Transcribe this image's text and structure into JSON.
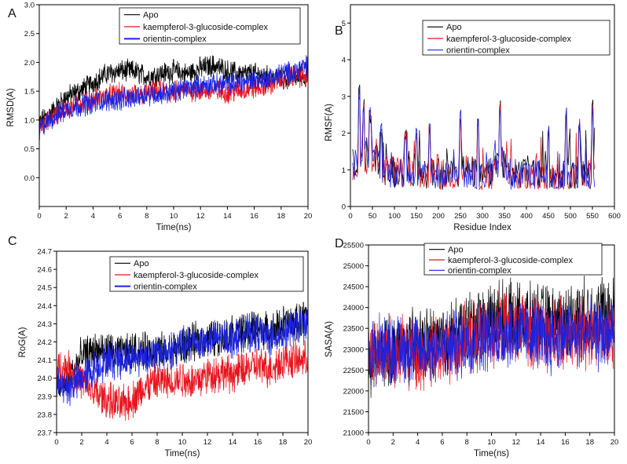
{
  "chart_data": [
    {
      "panel": "A",
      "type": "line",
      "xlabel": "Time(ns)",
      "ylabel": "RMSD(A)",
      "xlim": [
        0,
        20
      ],
      "ylim": [
        -0.5,
        3.0
      ],
      "xticks": [
        0,
        2,
        4,
        6,
        8,
        10,
        12,
        14,
        16,
        18,
        20
      ],
      "yticks": [
        "0.0",
        "0.5",
        "1.0",
        "1.5",
        "2.0",
        "2.5",
        "3.0"
      ],
      "legend": [
        "Apo",
        "kaempferol-3-glucoside-complex",
        "orientin-complex"
      ],
      "series": [
        {
          "name": "Apo",
          "color": "#000000",
          "x": [
            0,
            1,
            2,
            3,
            4,
            5,
            6,
            7,
            8,
            9,
            10,
            11,
            12,
            13,
            14,
            15,
            16,
            17,
            18,
            19,
            20
          ],
          "values": [
            0.95,
            1.15,
            1.4,
            1.5,
            1.65,
            1.8,
            1.85,
            1.85,
            1.75,
            1.8,
            1.85,
            1.8,
            1.9,
            1.95,
            1.85,
            1.8,
            1.8,
            1.75,
            1.7,
            1.75,
            1.78
          ]
        },
        {
          "name": "kaempferol-3-glucoside-complex",
          "color": "#e8141e",
          "x": [
            0,
            1,
            2,
            3,
            4,
            5,
            6,
            7,
            8,
            9,
            10,
            11,
            12,
            13,
            14,
            15,
            16,
            17,
            18,
            19,
            20
          ],
          "values": [
            0.85,
            1.05,
            1.2,
            1.28,
            1.33,
            1.42,
            1.45,
            1.42,
            1.45,
            1.5,
            1.48,
            1.52,
            1.5,
            1.5,
            1.48,
            1.52,
            1.55,
            1.6,
            1.7,
            1.78,
            1.72
          ]
        },
        {
          "name": "orientin-complex",
          "color": "#1a22e0",
          "x": [
            0,
            1,
            2,
            3,
            4,
            5,
            6,
            7,
            8,
            9,
            10,
            11,
            12,
            13,
            14,
            15,
            16,
            17,
            18,
            19,
            20
          ],
          "values": [
            0.85,
            1.05,
            1.18,
            1.25,
            1.3,
            1.35,
            1.35,
            1.38,
            1.45,
            1.45,
            1.5,
            1.55,
            1.6,
            1.62,
            1.62,
            1.65,
            1.7,
            1.72,
            1.8,
            1.85,
            1.95
          ]
        }
      ]
    },
    {
      "panel": "B",
      "type": "line",
      "xlabel": "Residue Index",
      "ylabel": "RMSF(A)",
      "xlim": [
        0,
        600
      ],
      "ylim": [
        0,
        5.5
      ],
      "xticks": [
        0,
        50,
        100,
        150,
        200,
        250,
        300,
        350,
        400,
        450,
        500,
        550,
        600
      ],
      "yticks": [
        "0",
        "1",
        "2",
        "3",
        "4",
        "5"
      ],
      "legend": [
        "Apo",
        "kaempferol-3-glucoside-complex",
        "orientin-complex"
      ],
      "series": [
        {
          "name": "Apo",
          "color": "#000000",
          "x": [
            0,
            25,
            50,
            75,
            100,
            125,
            150,
            175,
            200,
            225,
            250,
            275,
            300,
            325,
            340,
            360,
            375,
            400,
            425,
            450,
            475,
            500,
            525,
            555
          ],
          "values": [
            1.1,
            1.3,
            1.5,
            1.0,
            0.95,
            1.0,
            1.0,
            0.85,
            0.9,
            0.9,
            1.0,
            0.95,
            0.8,
            0.9,
            1.4,
            0.9,
            0.9,
            0.85,
            0.9,
            0.8,
            0.85,
            0.9,
            1.0,
            0.9
          ]
        },
        {
          "name": "kaempferol-3-glucoside-complex",
          "color": "#e8141e",
          "x": [
            0,
            25,
            50,
            75,
            100,
            125,
            150,
            175,
            200,
            225,
            250,
            275,
            300,
            325,
            340,
            360,
            375,
            400,
            425,
            450,
            475,
            500,
            525,
            555
          ],
          "values": [
            1.0,
            1.2,
            1.4,
            0.95,
            0.9,
            0.95,
            0.95,
            0.8,
            0.85,
            0.85,
            0.95,
            0.9,
            0.75,
            0.85,
            1.35,
            0.85,
            0.85,
            0.8,
            0.85,
            0.75,
            0.8,
            0.85,
            0.95,
            0.85
          ]
        },
        {
          "name": "orientin-complex",
          "color": "#1a22e0",
          "x": [
            0,
            25,
            50,
            75,
            100,
            125,
            150,
            175,
            200,
            225,
            250,
            275,
            300,
            325,
            340,
            360,
            375,
            400,
            425,
            450,
            475,
            500,
            525,
            555
          ],
          "values": [
            1.05,
            1.35,
            1.45,
            1.0,
            0.9,
            0.95,
            1.0,
            0.8,
            0.85,
            0.9,
            0.95,
            0.9,
            0.75,
            0.85,
            1.4,
            0.9,
            0.85,
            0.85,
            0.85,
            0.8,
            0.8,
            0.9,
            1.0,
            0.85
          ]
        }
      ],
      "peaks": {
        "x": [
          20,
          30,
          45,
          70,
          125,
          150,
          180,
          250,
          290,
          340,
          450,
          490,
          520,
          550
        ],
        "values": [
          3.2,
          2.8,
          2.6,
          2.2,
          2.0,
          2.1,
          2.2,
          2.6,
          2.3,
          2.8,
          2.1,
          2.6,
          2.3,
          2.8
        ]
      }
    },
    {
      "panel": "C",
      "type": "line",
      "xlabel": "Time(ns)",
      "ylabel": "RoG(A)",
      "xlim": [
        0,
        20
      ],
      "ylim": [
        23.7,
        24.7
      ],
      "xticks": [
        0,
        2,
        4,
        6,
        8,
        10,
        12,
        14,
        16,
        18,
        20
      ],
      "yticks": [
        "23.7",
        "23.8",
        "23.9",
        "24.0",
        "24.1",
        "24.2",
        "24.3",
        "24.4",
        "24.5",
        "24.6",
        "24.7"
      ],
      "legend": [
        "Apo",
        "kaempferol-3-glucoside-complex",
        "orientin-complex"
      ],
      "series": [
        {
          "name": "Apo",
          "color": "#000000",
          "x": [
            0,
            1,
            2,
            3,
            4,
            5,
            6,
            7,
            8,
            9,
            10,
            11,
            12,
            13,
            14,
            15,
            16,
            17,
            18,
            19,
            20
          ],
          "values": [
            23.95,
            24.0,
            24.12,
            24.15,
            24.15,
            24.13,
            24.15,
            24.15,
            24.15,
            24.15,
            24.18,
            24.2,
            24.22,
            24.22,
            24.25,
            24.25,
            24.28,
            24.25,
            24.3,
            24.3,
            24.35
          ]
        },
        {
          "name": "kaempferol-3-glucoside-complex",
          "color": "#e8141e",
          "x": [
            0,
            1,
            2,
            3,
            4,
            5,
            6,
            7,
            8,
            9,
            10,
            11,
            12,
            13,
            14,
            15,
            16,
            17,
            18,
            19,
            20
          ],
          "values": [
            24.05,
            24.05,
            23.98,
            23.92,
            23.88,
            23.85,
            23.88,
            23.95,
            23.98,
            23.98,
            24.0,
            23.98,
            24.02,
            24.03,
            24.02,
            24.05,
            24.07,
            24.05,
            24.1,
            24.1,
            24.1
          ]
        },
        {
          "name": "orientin-complex",
          "color": "#1a22e0",
          "x": [
            0,
            1,
            2,
            3,
            4,
            5,
            6,
            7,
            8,
            9,
            10,
            11,
            12,
            13,
            14,
            15,
            16,
            17,
            18,
            19,
            20
          ],
          "values": [
            23.95,
            23.95,
            24.0,
            24.05,
            24.1,
            24.1,
            24.12,
            24.12,
            24.13,
            24.15,
            24.18,
            24.2,
            24.2,
            24.22,
            24.22,
            24.25,
            24.25,
            24.22,
            24.25,
            24.28,
            24.3
          ]
        }
      ]
    },
    {
      "panel": "D",
      "type": "line",
      "xlabel": "Time(ns)",
      "ylabel": "SASA(A)",
      "xlim": [
        0,
        20
      ],
      "ylim": [
        21000,
        25500
      ],
      "xticks": [
        0,
        2,
        4,
        6,
        8,
        10,
        12,
        14,
        16,
        18,
        20
      ],
      "yticks": [
        "21000",
        "21500",
        "22000",
        "22500",
        "23000",
        "23500",
        "24000",
        "24500",
        "25000",
        "25500"
      ],
      "legend": [
        "Apo",
        "kaempferol-3-glucoside-complex",
        "orientin-complex"
      ],
      "series": [
        {
          "name": "Apo",
          "color": "#000000",
          "x": [
            0,
            1,
            2,
            3,
            4,
            5,
            6,
            7,
            8,
            9,
            10,
            11,
            12,
            13,
            14,
            15,
            16,
            17,
            18,
            19,
            20
          ],
          "values": [
            22600,
            22900,
            23000,
            23100,
            23100,
            23150,
            23200,
            23350,
            23500,
            23650,
            23750,
            23800,
            23750,
            23700,
            23700,
            23650,
            23700,
            23800,
            23850,
            23900,
            23900
          ]
        },
        {
          "name": "kaempferol-3-glucoside-complex",
          "color": "#e8141e",
          "x": [
            0,
            1,
            2,
            3,
            4,
            5,
            6,
            7,
            8,
            9,
            10,
            11,
            12,
            13,
            14,
            15,
            16,
            17,
            18,
            19,
            20
          ],
          "values": [
            22900,
            22950,
            22950,
            22900,
            22850,
            22900,
            23000,
            23100,
            23200,
            23300,
            23400,
            23500,
            23450,
            23400,
            23350,
            23300,
            23350,
            23400,
            23450,
            23350,
            23250
          ]
        },
        {
          "name": "orientin-complex",
          "color": "#1a22e0",
          "x": [
            0,
            1,
            2,
            3,
            4,
            5,
            6,
            7,
            8,
            9,
            10,
            11,
            12,
            13,
            14,
            15,
            16,
            17,
            18,
            19,
            20
          ],
          "values": [
            22950,
            23000,
            23000,
            23000,
            23000,
            23000,
            23050,
            23100,
            23200,
            23300,
            23350,
            23400,
            23400,
            23350,
            23300,
            23300,
            23300,
            23350,
            23350,
            23350,
            23350
          ]
        }
      ]
    }
  ]
}
